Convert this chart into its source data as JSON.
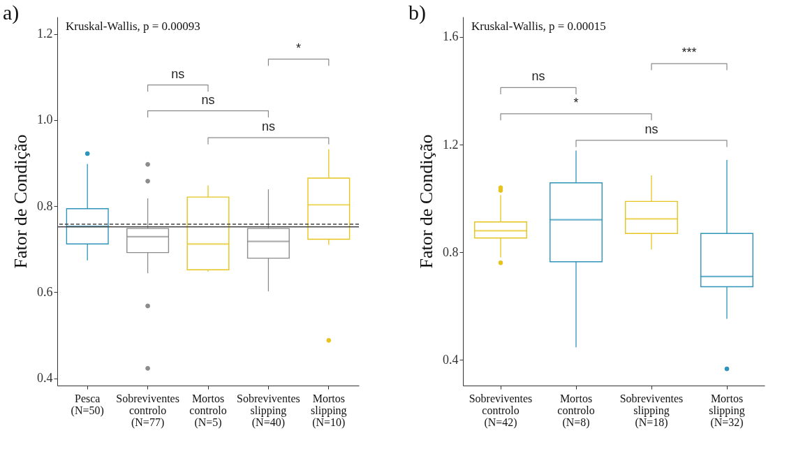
{
  "chart_data": [
    {
      "type": "box",
      "title": "a)",
      "ylabel": "Fator de Condição",
      "categories": [
        "Pesca\n(N=50)",
        "Sobreviventes\ncontrolo\n(N=77)",
        "Mortos\ncontrolo\n(N=5)",
        "Sobreviventes\nslipping\n(N=40)",
        "Mortos\nslipping\n(N=10)"
      ],
      "boxes": [
        {
          "low": 0.674,
          "q1": 0.712,
          "median": 0.753,
          "q3": 0.794,
          "high": 0.898,
          "outliers": [
            0.922
          ]
        },
        {
          "low": 0.644,
          "q1": 0.692,
          "median": 0.729,
          "q3": 0.748,
          "high": 0.818,
          "outliers": [
            0.897,
            0.858,
            0.568,
            0.423
          ]
        },
        {
          "low": 0.648,
          "q1": 0.652,
          "median": 0.712,
          "q3": 0.821,
          "high": 0.848
        },
        {
          "low": 0.602,
          "q1": 0.679,
          "median": 0.718,
          "q3": 0.748,
          "high": 0.839
        },
        {
          "low": 0.71,
          "q1": 0.723,
          "median": 0.803,
          "q3": 0.865,
          "high": 0.932,
          "outliers": [
            0.488
          ]
        }
      ],
      "colors": [
        "#2e94b9",
        "#8c8c8c",
        "#e6c41e",
        "#8c8c8c",
        "#e6c41e"
      ],
      "ylim": [
        0.383,
        1.24
      ],
      "yticks": [
        0.4,
        0.6,
        0.8,
        {
          "value": 1,
          "label": "1.0"
        },
        1.2
      ],
      "grid": false,
      "ref_lines": [
        {
          "axis": "y",
          "value": 0.752,
          "color": "#444444",
          "line_style": "solid"
        },
        {
          "axis": "y",
          "value": 0.758,
          "color": "#444444",
          "line_style": "dashed"
        }
      ],
      "annotations": [
        "Kruskal-Wallis, p = 0.00093",
        "ns",
        "ns",
        "ns",
        "*"
      ]
    },
    {
      "type": "box",
      "title": "b)",
      "ylabel": "Fator de Condição",
      "categories": [
        "Sobreviventes\ncontrolo\n(N=42)",
        "Mortos\ncontrolo\n(N=8)",
        "Sobreviventes\nslipping\n(N=18)",
        "Mortos\nslipping\n(N=32)"
      ],
      "boxes": [
        {
          "low": 0.781,
          "q1": 0.853,
          "median": 0.88,
          "q3": 0.913,
          "high": 1.013,
          "outliers": [
            1.03,
            1.04,
            0.761
          ]
        },
        {
          "low": 0.447,
          "q1": 0.765,
          "median": 0.921,
          "q3": 1.058,
          "high": 1.178
        },
        {
          "low": 0.81,
          "q1": 0.87,
          "median": 0.924,
          "q3": 0.989,
          "high": 1.086
        },
        {
          "low": 0.553,
          "q1": 0.672,
          "median": 0.71,
          "q3": 0.87,
          "high": 1.143,
          "outliers": [
            0.367
          ]
        }
      ],
      "colors": [
        "#e6c41e",
        "#2e94b9",
        "#e6c41e",
        "#2e94b9"
      ],
      "ylim": [
        0.305,
        1.675
      ],
      "yticks": [
        0.4,
        0.8,
        1.2,
        1.6
      ],
      "grid": false,
      "annotations": [
        "Kruskal-Wallis, p = 0.00015",
        "ns",
        "*",
        "ns",
        "***"
      ]
    }
  ]
}
